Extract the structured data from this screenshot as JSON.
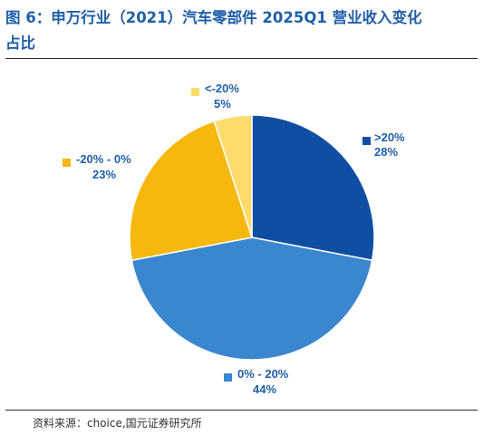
{
  "header": {
    "title_line1": "图 6：申万行业（2021）汽车零部件 2025Q1 营业收入变化",
    "title_line2": "占比"
  },
  "footer": {
    "source": "资料来源：choice,国元证券研究所"
  },
  "chart_data": {
    "type": "pie",
    "categories": [
      ">20%",
      "0% - 20%",
      "-20% - 0%",
      "<-20%"
    ],
    "values": [
      28,
      44,
      23,
      5
    ],
    "value_labels": [
      "28%",
      "44%",
      "23%",
      "5%"
    ],
    "colors": [
      "#0f4fa3",
      "#3a87d0",
      "#f6b80f",
      "#fddb6d"
    ],
    "label_color": "#1f5fa8",
    "start_angle": "12 o'clock",
    "direction": "clockwise",
    "legend": "labels beside slices"
  }
}
